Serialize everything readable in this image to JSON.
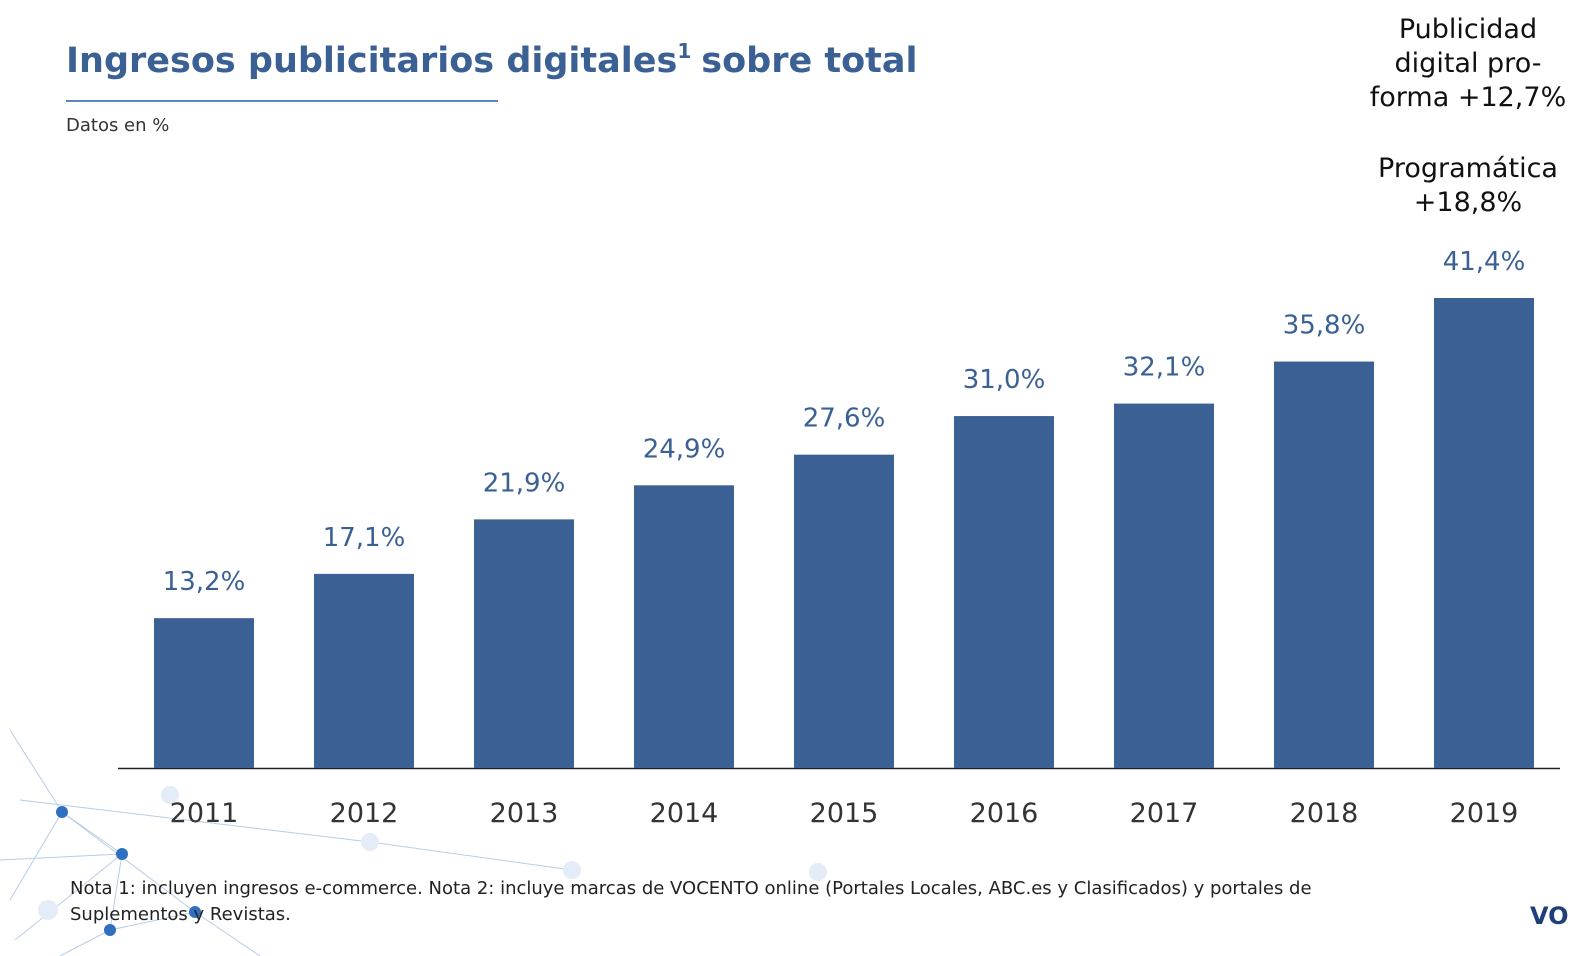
{
  "chart_data": {
    "type": "bar",
    "title": "Ingresos publicitarios digitales",
    "title_superscript": "1",
    "title_end": "sobre total",
    "subtitle": "Datos en %",
    "categories": [
      "2011",
      "2012",
      "2013",
      "2014",
      "2015",
      "2016",
      "2017",
      "2018",
      "2019"
    ],
    "values": [
      13.2,
      17.1,
      21.9,
      24.9,
      27.6,
      31.0,
      32.1,
      35.8,
      41.4
    ],
    "value_labels": [
      "13,2%",
      "17,1%",
      "21,9%",
      "24,9%",
      "27,6%",
      "31,0%",
      "32,1%",
      "35,8%",
      "41,4%"
    ],
    "color": "#3a6094",
    "annotations": [
      [
        "Publicidad",
        "digital pro-",
        "forma +12,7%"
      ],
      [
        "Programática",
        "+18,8%"
      ]
    ],
    "footnote": [
      "Nota 1: incluyen ingresos e-commerce. Nota 2: incluye marcas de VOCENTO online (Portales Locales, ABC.es y Clasificados) y portales de",
      "Suplementos y Revistas."
    ],
    "logo": "VO"
  }
}
